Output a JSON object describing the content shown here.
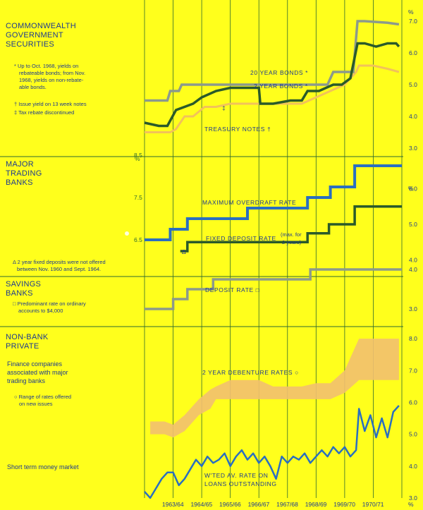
{
  "colors": {
    "background": "#ffff1c",
    "text": "#1d3a8f",
    "rule": "#2f6b2f",
    "bonds20": "#8c9a8c",
    "bonds2": "#2a5a2a",
    "treasury": "#f2c25a",
    "overdraft": "#2a6fc0",
    "fixed_deposit": "#2a5a2a",
    "savings": "#8c9a8c",
    "debenture_fill": "#f2c070",
    "money_market": "#2a6fc0"
  },
  "x_labels": [
    "1963/64",
    "1964/65",
    "1965/66",
    "1966/67",
    "1967/68",
    "1968/69",
    "1969/70",
    "1970/71"
  ],
  "percent_symbol": "%",
  "sections": {
    "commonwealth": {
      "title_lines": [
        "COMMONWEALTH",
        "GOVERNMENT",
        "SECURITIES"
      ],
      "note_bonds": [
        "* Up to Oct. 1968, yields on",
        "rebateable bonds; from Nov.",
        "1968, yields on non-rebate-",
        "able bonds."
      ],
      "note_issue": "† Issue yield on 13 week notes",
      "note_tax": "‡ Tax rebate discontinued",
      "label_20yr": "20 YEAR BONDS *",
      "label_2yr": "2 YEAR BONDS *",
      "label_treasury": "TREASURY NOTES †",
      "tax_marker": "‡",
      "right_ticks": [
        "7.0",
        "6.0",
        "5.0",
        "4.0",
        "3.0"
      ]
    },
    "trading": {
      "title_lines": [
        "MAJOR",
        "TRADING",
        "BANKS"
      ],
      "note_lines": [
        "Δ 2 year fixed deposits were not offered",
        "between Nov. 1960 and Sept. 1964."
      ],
      "label_overdraft": "MAXIMUM OVERDRAFT RATE",
      "label_fixed": "FIXED DEPOSIT RATE",
      "label_fixed_note": [
        "(max. for",
        "2 years)"
      ],
      "delta_marker": "Δ",
      "left_ticks": [
        "8.5",
        "7.5",
        "6.5"
      ],
      "right_ticks": [
        "6.0",
        "5.0",
        "4.0"
      ]
    },
    "savings": {
      "title_lines": [
        "SAVINGS",
        "BANKS"
      ],
      "note_lines": [
        "□ Predominant rate on ordinary",
        "accounts to $4,000"
      ],
      "label_deposit": "DEPOSIT RATE □",
      "right_ticks": [
        "4.0",
        "3.0"
      ]
    },
    "nonbank": {
      "title_lines": [
        "NON-BANK",
        "PRIVATE"
      ],
      "finance_lines": [
        "Finance companies",
        "associated with major",
        "trading banks"
      ],
      "range_note": [
        "○ Range of rates offered",
        "on new issues"
      ],
      "label_debenture": "2 YEAR DEBENTURE RATES ○",
      "money_market_label": "Short term money market",
      "label_wted": [
        "W'TED AV. RATE ON",
        "LOANS OUTSTANDING"
      ],
      "right_ticks": [
        "8.0",
        "7.0",
        "6.0",
        "5.0",
        "4.0",
        "3.0"
      ]
    }
  },
  "chart_data": [
    {
      "type": "line",
      "title": "COMMONWEALTH GOVERNMENT SECURITIES",
      "x_start": 1962.5,
      "x_end": 1971.5,
      "ylim": [
        3.0,
        7.0
      ],
      "yticks": [
        3.0,
        4.0,
        5.0,
        6.0,
        7.0
      ],
      "series": [
        {
          "name": "20 YEAR BONDS *",
          "x": [
            1962.5,
            1963.3,
            1963.4,
            1963.7,
            1963.8,
            1964.0,
            1964.3,
            1964.8,
            1965.1,
            1965.3,
            1966.0,
            1966.3,
            1966.6,
            1967.0,
            1967.5,
            1968.0,
            1968.4,
            1968.9,
            1969.1,
            1969.4,
            1969.8,
            1969.95,
            1970.2,
            1971.0,
            1971.4
          ],
          "y": [
            4.5,
            4.5,
            4.8,
            4.8,
            5.0,
            5.0,
            5.0,
            5.0,
            5.0,
            5.0,
            5.0,
            5.0,
            5.0,
            5.0,
            5.0,
            5.0,
            5.0,
            5.0,
            5.4,
            5.4,
            5.4,
            7.0,
            7.0,
            6.95,
            6.9
          ]
        },
        {
          "name": "2 YEAR BONDS *",
          "x": [
            1962.5,
            1963.0,
            1963.3,
            1963.6,
            1963.9,
            1964.2,
            1964.5,
            1965.0,
            1965.5,
            1966.0,
            1966.5,
            1966.55,
            1967.0,
            1967.6,
            1968.0,
            1968.2,
            1968.6,
            1969.1,
            1969.4,
            1969.7,
            1969.95,
            1970.2,
            1970.6,
            1971.0,
            1971.3,
            1971.4
          ],
          "y": [
            3.8,
            3.7,
            3.7,
            4.2,
            4.3,
            4.4,
            4.6,
            4.8,
            4.9,
            4.9,
            4.9,
            4.4,
            4.4,
            4.5,
            4.5,
            4.8,
            4.8,
            5.0,
            5.0,
            5.2,
            6.3,
            6.3,
            6.2,
            6.3,
            6.3,
            6.2
          ]
        },
        {
          "name": "TREASURY NOTES †",
          "x": [
            1962.5,
            1963.2,
            1963.4,
            1963.6,
            1963.9,
            1964.2,
            1964.6,
            1965.0,
            1965.5,
            1966.0,
            1966.5,
            1967.0,
            1967.5,
            1968.0,
            1968.5,
            1969.0,
            1969.5,
            1969.9,
            1970.0,
            1970.5,
            1971.0,
            1971.4
          ],
          "y": [
            3.5,
            3.5,
            3.5,
            3.6,
            4.0,
            4.0,
            4.3,
            4.3,
            4.4,
            4.4,
            4.4,
            4.4,
            4.4,
            4.4,
            4.6,
            4.8,
            5.0,
            5.4,
            5.6,
            5.6,
            5.5,
            5.4
          ]
        }
      ]
    },
    {
      "type": "line",
      "title": "MAJOR TRADING BANKS",
      "x_start": 1962.5,
      "x_end": 1971.5,
      "ylim": [
        6.0,
        9.0
      ],
      "yticks": [
        6.5,
        7.5,
        8.5
      ],
      "series": [
        {
          "name": "MAXIMUM OVERDRAFT RATE",
          "x": [
            1962.5,
            1963.4,
            1963.4,
            1964.0,
            1964.0,
            1966.1,
            1966.1,
            1968.2,
            1968.2,
            1969.0,
            1969.0,
            1969.85,
            1969.85,
            1971.5
          ],
          "y": [
            6.5,
            6.5,
            6.75,
            6.75,
            7.0,
            7.0,
            7.25,
            7.25,
            7.5,
            7.5,
            7.75,
            7.75,
            8.25,
            8.25
          ]
        }
      ]
    },
    {
      "type": "line",
      "title": "MAJOR TRADING BANKS",
      "x_start": 1962.5,
      "x_end": 1971.5,
      "ylim": [
        3.5,
        6.5
      ],
      "yticks": [
        4.0,
        5.0,
        6.0
      ],
      "series": [
        {
          "name": "FIXED DEPOSIT RATE",
          "x": [
            1963.75,
            1964.0,
            1964.0,
            1968.2,
            1968.2,
            1968.95,
            1968.95,
            1969.85,
            1969.85,
            1971.5
          ],
          "y": [
            4.25,
            4.25,
            4.5,
            4.5,
            4.75,
            4.75,
            5.0,
            5.0,
            5.5,
            5.5
          ]
        }
      ]
    },
    {
      "type": "line",
      "title": "SAVINGS BANKS",
      "x_start": 1962.5,
      "x_end": 1971.5,
      "ylim": [
        2.5,
        4.5
      ],
      "yticks": [
        3.0,
        4.0
      ],
      "series": [
        {
          "name": "DEPOSIT RATE □",
          "x": [
            1962.5,
            1963.5,
            1963.5,
            1964.0,
            1964.0,
            1964.9,
            1964.9,
            1968.3,
            1968.3,
            1971.5
          ],
          "y": [
            3.0,
            3.0,
            3.25,
            3.25,
            3.5,
            3.5,
            3.75,
            3.75,
            4.0,
            4.0
          ]
        }
      ]
    },
    {
      "type": "area",
      "title": "NON-BANK PRIVATE",
      "x_start": 1962.5,
      "x_end": 1971.5,
      "ylim": [
        2.6,
        8.6
      ],
      "yticks": [
        3.0,
        4.0,
        5.0,
        6.0,
        7.0,
        8.0
      ],
      "series": [
        {
          "name": "2 YEAR DEBENTURE RATES ○",
          "x": [
            1962.7,
            1963.0,
            1963.2,
            1963.5,
            1963.9,
            1964.4,
            1964.8,
            1965.0,
            1965.5,
            1966.0,
            1966.5,
            1967.0,
            1967.5,
            1968.0,
            1968.5,
            1969.0,
            1969.5,
            1970.0,
            1970.5,
            1971.0,
            1971.4
          ],
          "low": [
            5.0,
            5.0,
            5.0,
            4.9,
            5.1,
            5.6,
            5.8,
            6.1,
            6.1,
            6.1,
            6.1,
            6.1,
            6.1,
            6.1,
            6.1,
            6.1,
            6.3,
            6.7,
            6.7,
            6.7,
            6.7
          ],
          "high": [
            5.4,
            5.4,
            5.4,
            5.3,
            5.6,
            6.1,
            6.4,
            6.5,
            6.7,
            6.7,
            6.7,
            6.5,
            6.5,
            6.5,
            6.6,
            6.6,
            7.0,
            8.0,
            8.0,
            8.0,
            8.0
          ]
        },
        {
          "name": "W'TED AV. RATE ON LOANS OUTSTANDING",
          "x": [
            1962.5,
            1962.7,
            1962.9,
            1963.1,
            1963.3,
            1963.5,
            1963.7,
            1963.9,
            1964.1,
            1964.3,
            1964.5,
            1964.7,
            1964.9,
            1965.1,
            1965.3,
            1965.5,
            1965.7,
            1965.9,
            1966.1,
            1966.3,
            1966.5,
            1966.7,
            1966.9,
            1967.1,
            1967.3,
            1967.5,
            1967.7,
            1967.9,
            1968.1,
            1968.3,
            1968.5,
            1968.7,
            1968.9,
            1969.1,
            1969.3,
            1969.5,
            1969.7,
            1969.9,
            1970.0,
            1970.2,
            1970.4,
            1970.6,
            1970.8,
            1971.0,
            1971.2,
            1971.4
          ],
          "y": [
            3.2,
            3.0,
            3.3,
            3.6,
            3.8,
            3.8,
            3.4,
            3.6,
            3.9,
            4.2,
            4.0,
            4.3,
            4.1,
            4.2,
            4.4,
            4.0,
            4.3,
            4.5,
            4.2,
            4.4,
            4.1,
            4.3,
            4.0,
            3.6,
            4.3,
            4.1,
            4.3,
            4.2,
            4.4,
            4.1,
            4.3,
            4.5,
            4.3,
            4.6,
            4.4,
            4.6,
            4.3,
            4.5,
            5.8,
            5.1,
            5.6,
            4.9,
            5.5,
            4.9,
            5.7,
            5.9
          ]
        }
      ]
    }
  ]
}
